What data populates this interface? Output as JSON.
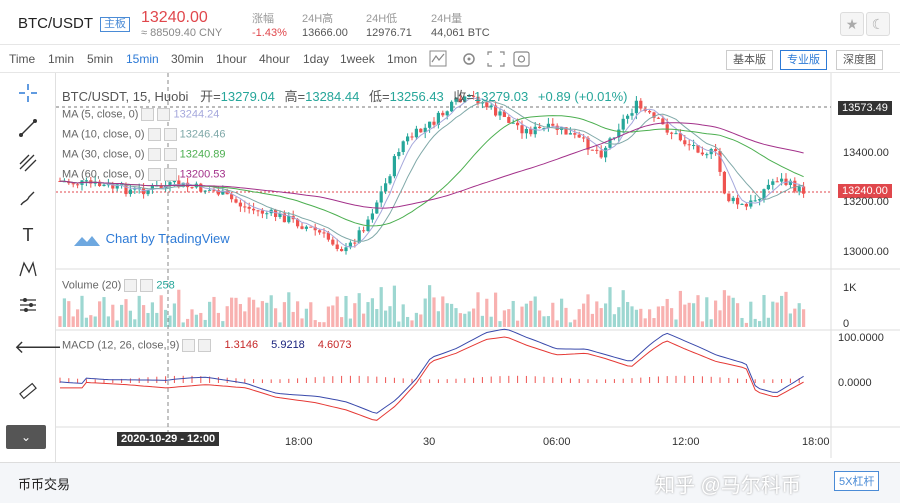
{
  "ticker": {
    "symbol": "BTC/USDT",
    "tag": "主板",
    "price": "13240.00",
    "cny": "≈ 88509.40 CNY",
    "stats": [
      {
        "label": "涨幅",
        "value": "-1.43%",
        "neg": true
      },
      {
        "label": "24H高",
        "value": "13666.00"
      },
      {
        "label": "24H低",
        "value": "12976.71"
      },
      {
        "label": "24H量",
        "value": "44,061 BTC"
      }
    ]
  },
  "toolbar": {
    "timeframes": [
      "Time",
      "1min",
      "5min",
      "15min",
      "30min",
      "1hour",
      "4hour",
      "1day",
      "1week",
      "1mon"
    ],
    "active": "15min",
    "views": [
      "基本版",
      "专业版",
      "深度图"
    ],
    "active_view": "专业版"
  },
  "legend": {
    "title": "BTC/USDT, 15, Huobi",
    "open_l": "开=",
    "open": "13279.04",
    "high_l": "高=",
    "high": "13284.44",
    "low_l": "低=",
    "low": "13256.43",
    "close_l": "收=",
    "close": "13279.03",
    "chg": "+0.89 (+0.01%)"
  },
  "ma": [
    {
      "label": "MA (5, close, 0)",
      "value": "13244.24",
      "color": "#a5a8dc"
    },
    {
      "label": "MA (10, close, 0)",
      "value": "13246.46",
      "color": "#7fa8a8"
    },
    {
      "label": "MA (30, close, 0)",
      "value": "13240.89",
      "color": "#4caf50"
    },
    {
      "label": "MA (60, close, 0)",
      "value": "13200.53",
      "color": "#a3318a"
    }
  ],
  "watermark": "Chart by TradingView",
  "price_axis": [
    "13400.00",
    "13200.00",
    "13000.00"
  ],
  "price_hi": "13573.49",
  "price_last": "13240.00",
  "volume": {
    "label": "Volume (20)",
    "value": "258",
    "axis": [
      "1K",
      "0"
    ]
  },
  "macd": {
    "label": "MACD (12, 26, close, 9)",
    "v1": "1.3146",
    "v2": "5.9218",
    "v3": "4.6073",
    "axis": [
      "100.0000",
      "0.0000"
    ]
  },
  "time_axis": [
    "18:00",
    "30",
    "06:00",
    "12:00",
    "18:00"
  ],
  "crosshair_time": "2020-10-29 - 12:00",
  "bottom": {
    "tab": "币币交易",
    "right": "5X杠杆",
    "watermark": "知乎 @马尔科币"
  },
  "colors": {
    "up": "#26a69a",
    "down": "#ef5350",
    "accent": "#2d7ad6"
  }
}
